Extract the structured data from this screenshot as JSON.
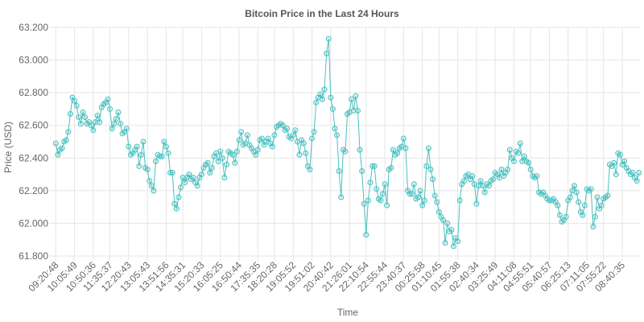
{
  "chart_data": {
    "type": "line",
    "title": "Bitcoin Price in the Last 24 Hours",
    "xlabel": "Time",
    "ylabel": "Price (USD)",
    "ylim": [
      61800,
      63200
    ],
    "yticks": [
      "61.800",
      "62.000",
      "62.200",
      "62.400",
      "62.600",
      "62.800",
      "63.000",
      "63.200"
    ],
    "ytick_values": [
      61800,
      62000,
      62200,
      62400,
      62600,
      62800,
      63000,
      63200
    ],
    "grid": true,
    "legend": "none",
    "color": "#4bc0c0",
    "x_tick_labels": [
      "09:20:48",
      "10:05:49",
      "10:50:36",
      "11:35:37",
      "12:20:43",
      "13:05:43",
      "13:51:56",
      "14:35:31",
      "15:20:33",
      "16:05:25",
      "16:50:44",
      "17:35:35",
      "18:20:28",
      "19:05:52",
      "19:51:02",
      "20:40:42",
      "21:26:01",
      "22:10:54",
      "22:55:44",
      "23:40:37",
      "00:25:58",
      "01:10:45",
      "01:55:38",
      "02:40:34",
      "03:25:49",
      "04:11:08",
      "04:55:51",
      "05:40:57",
      "06:25:13",
      "07:11:05",
      "07:55:22",
      "08:40:35"
    ],
    "series": [
      {
        "values": [
          62490,
          62420,
          62450,
          62460,
          62500,
          62510,
          62560,
          62670,
          62770,
          62750,
          62720,
          62650,
          62610,
          62680,
          62650,
          62610,
          62620,
          62600,
          62570,
          62620,
          62660,
          62620,
          62710,
          62730,
          62740,
          62760,
          62700,
          62580,
          62610,
          62640,
          62680,
          62610,
          62550,
          62560,
          62580,
          62470,
          62420,
          62430,
          62450,
          62470,
          62350,
          62420,
          62500,
          62340,
          62330,
          62260,
          62230,
          62200,
          62380,
          62420,
          62410,
          62410,
          62500,
          62470,
          62430,
          62310,
          62310,
          62120,
          62090,
          62160,
          62220,
          62280,
          62250,
          62280,
          62300,
          62270,
          62280,
          62250,
          62230,
          62280,
          62300,
          62340,
          62360,
          62370,
          62310,
          62340,
          62410,
          62430,
          62380,
          62440,
          62400,
          62280,
          62360,
          62440,
          62430,
          62420,
          62370,
          62440,
          62510,
          62560,
          62480,
          62490,
          62540,
          62480,
          62460,
          62440,
          62420,
          62450,
          62510,
          62520,
          62480,
          62500,
          62520,
          62490,
          62470,
          62540,
          62590,
          62600,
          62610,
          62600,
          62570,
          62580,
          62530,
          62520,
          62540,
          62570,
          62500,
          62420,
          62510,
          62490,
          62430,
          62350,
          62330,
          62520,
          62560,
          62740,
          62770,
          62790,
          62760,
          62820,
          63040,
          63130,
          62770,
          62700,
          62580,
          62540,
          62320,
          62160,
          62450,
          62440,
          62670,
          62680,
          62760,
          62690,
          62780,
          62690,
          62450,
          62320,
          62120,
          61930,
          62140,
          62250,
          62350,
          62350,
          62210,
          62150,
          62140,
          62180,
          62240,
          62110,
          62330,
          62340,
          62450,
          62420,
          62430,
          62460,
          62470,
          62520,
          62460,
          62200,
          62180,
          62180,
          62240,
          62150,
          62160,
          62200,
          62110,
          62140,
          62350,
          62460,
          62330,
          62270,
          62170,
          62130,
          62070,
          62040,
          62020,
          61880,
          62000,
          61950,
          61960,
          61860,
          61910,
          61890,
          62140,
          62240,
          62260,
          62290,
          62300,
          62270,
          62290,
          62240,
          62120,
          62230,
          62260,
          62230,
          62190,
          62240,
          62230,
          62260,
          62270,
          62310,
          62300,
          62280,
          62330,
          62290,
          62310,
          62330,
          62450,
          62400,
          62380,
          62440,
          62430,
          62490,
          62380,
          62410,
          62380,
          62370,
          62330,
          62290,
          62280,
          62290,
          62190,
          62180,
          62190,
          62170,
          62150,
          62140,
          62140,
          62150,
          62130,
          62110,
          62050,
          62010,
          62020,
          62040,
          62140,
          62160,
          62200,
          62230,
          62190,
          62130,
          62070,
          62050,
          62110,
          62210,
          62200,
          62210,
          61980,
          62040,
          62160,
          62090,
          62110,
          62150,
          62160,
          62170,
          62360,
          62350,
          62370,
          62300,
          62430,
          62420,
          62360,
          62380,
          62340,
          62320,
          62300,
          62310,
          62280,
          62260,
          62310
        ]
      }
    ]
  }
}
